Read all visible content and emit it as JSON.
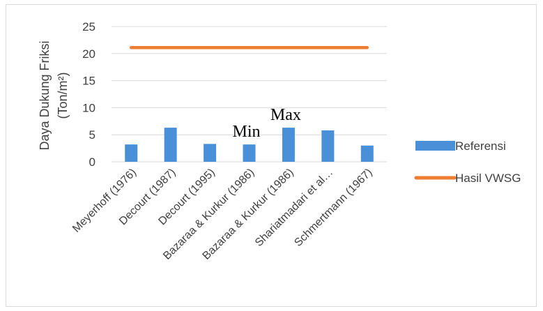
{
  "chart_data": {
    "type": "bar",
    "title": "",
    "xlabel": "",
    "ylabel": [
      "Daya Dukung Friksi",
      "(Ton/m²)"
    ],
    "categories": [
      "Meyerhoff (1976)",
      "Decourt (1987)",
      "Decourt (1995)",
      "Bazaraa & Kurkur (1986)",
      "Bazaraa & Kurkur (1986)",
      "Shariatmadari et al…",
      "Schmertmann (1967)"
    ],
    "ylim": [
      0,
      25
    ],
    "yticks": [
      "0",
      "5",
      "10",
      "15",
      "20",
      "25"
    ],
    "grid": true,
    "legend_position": "right",
    "series": [
      {
        "name": "Referensi",
        "type": "bar",
        "color": "#4a90d9",
        "values": [
          3.2,
          6.3,
          3.3,
          3.2,
          6.3,
          5.8,
          3.0
        ]
      },
      {
        "name": "Hasil VWSG",
        "type": "line",
        "color": "#ed7d31",
        "values": [
          21.1,
          21.1,
          21.1,
          21.1,
          21.1,
          21.1,
          21.1
        ]
      }
    ],
    "annotations": [
      {
        "text": "Min",
        "category_index": 3
      },
      {
        "text": "Max",
        "category_index": 4
      }
    ]
  }
}
